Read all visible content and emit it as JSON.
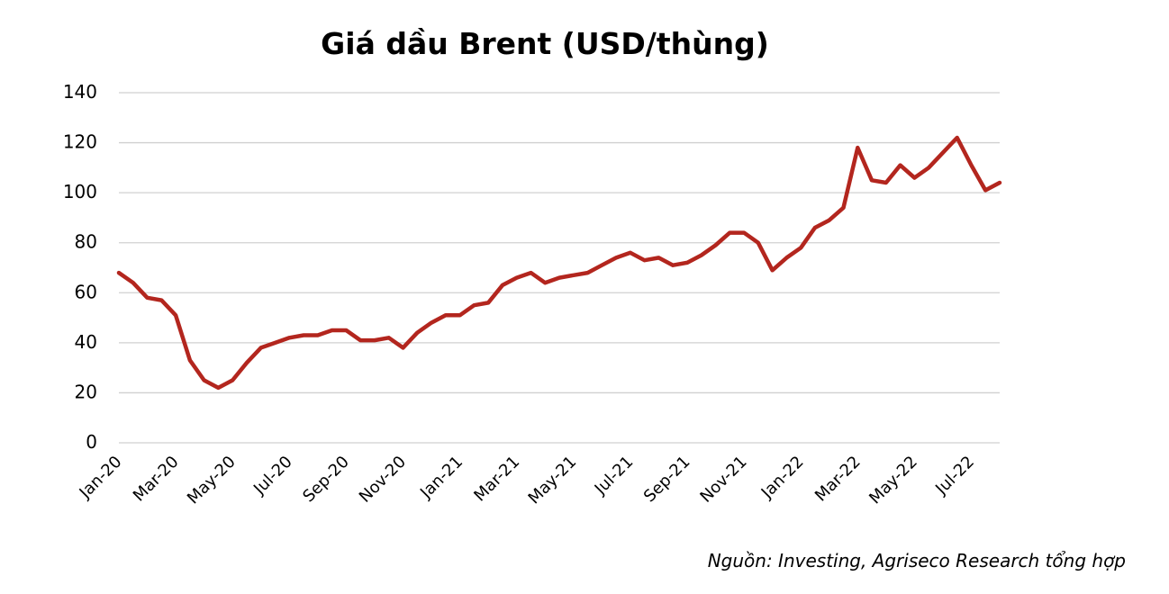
{
  "chart_data": {
    "type": "line",
    "title": "Giá dầu Brent (USD/thùng)",
    "source": "Nguồn: Investing, Agriseco Research tổng hợp",
    "categories": [
      "Jan-20",
      null,
      null,
      null,
      "Mar-20",
      null,
      null,
      null,
      "May-20",
      null,
      null,
      null,
      "Jul-20",
      null,
      null,
      null,
      "Sep-20",
      null,
      null,
      null,
      "Nov-20",
      null,
      null,
      null,
      "Jan-21",
      null,
      null,
      null,
      "Mar-21",
      null,
      null,
      null,
      "May-21",
      null,
      null,
      null,
      "Jul-21",
      null,
      null,
      null,
      "Sep-21",
      null,
      null,
      null,
      "Nov-21",
      null,
      null,
      null,
      "Jan-22",
      null,
      null,
      null,
      "Mar-22",
      null,
      null,
      null,
      "May-22",
      null,
      null,
      null,
      "Jul-22",
      null,
      null
    ],
    "series": [
      {
        "name": "Brent",
        "color": "#b3261e",
        "values": [
          68,
          64,
          58,
          57,
          51,
          33,
          25,
          22,
          25,
          32,
          38,
          40,
          42,
          43,
          43,
          45,
          45,
          41,
          41,
          42,
          38,
          44,
          48,
          51,
          51,
          55,
          56,
          63,
          66,
          68,
          64,
          66,
          67,
          68,
          71,
          74,
          76,
          73,
          74,
          71,
          72,
          75,
          79,
          84,
          84,
          80,
          69,
          74,
          78,
          86,
          89,
          94,
          118,
          105,
          104,
          111,
          106,
          110,
          116,
          122,
          111,
          101,
          104
        ]
      }
    ],
    "ylim": [
      0,
      140
    ],
    "yticks": [
      0,
      20,
      40,
      60,
      80,
      100,
      120,
      140
    ],
    "grid": true
  }
}
